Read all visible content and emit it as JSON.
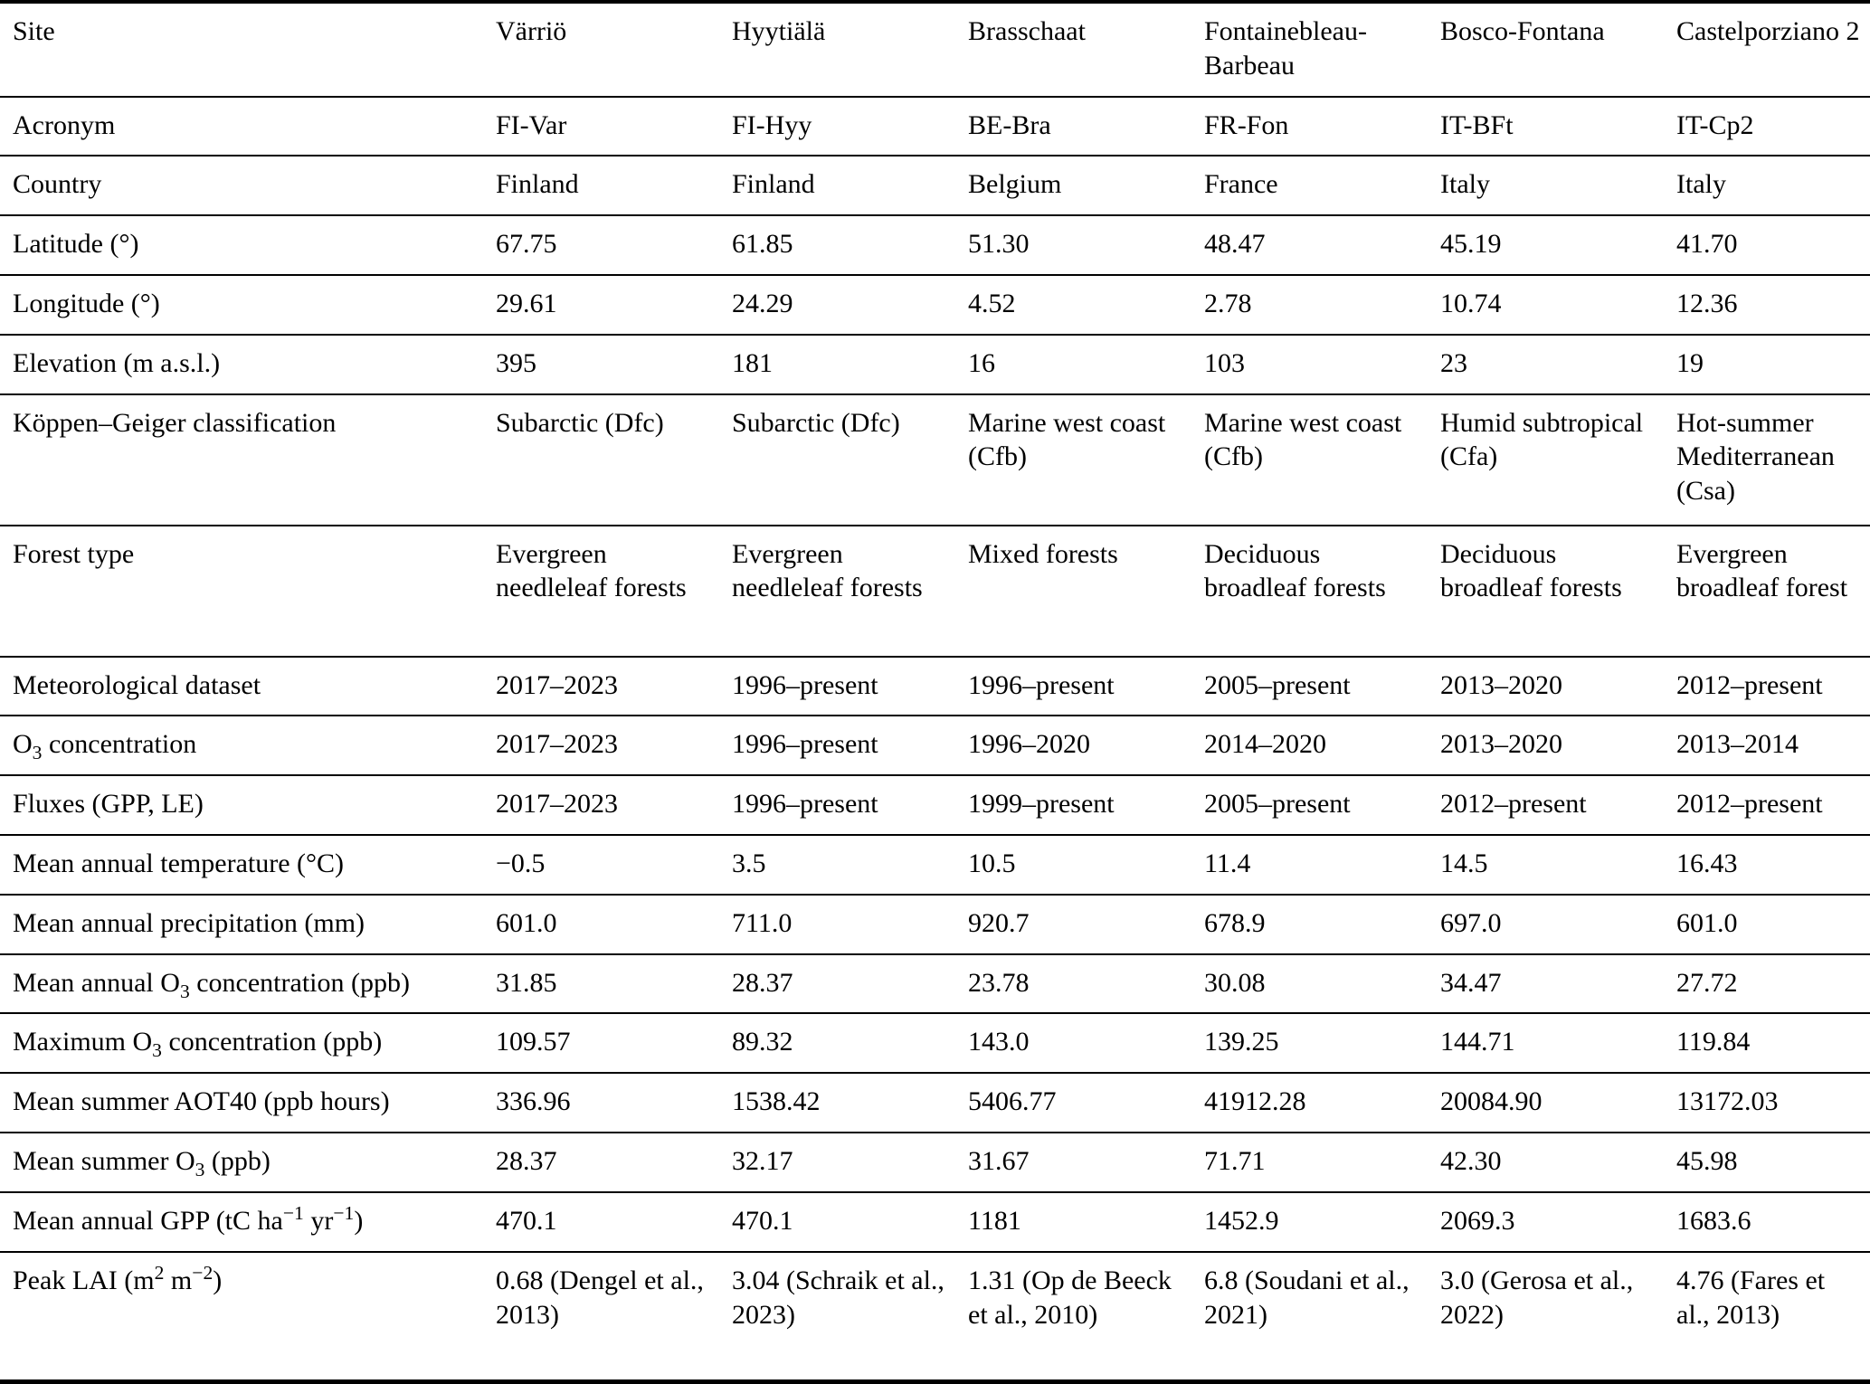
{
  "table": {
    "header": {
      "label": "Site",
      "values": [
        "Värriö",
        "Hyytiälä",
        "Brasschaat",
        "Fontainebleau-Barbeau",
        "Bosco-Fontana",
        "Castelporziano 2"
      ]
    },
    "rows": [
      {
        "label": "Acronym",
        "values": [
          "FI-Var",
          "FI-Hyy",
          "BE-Bra",
          "FR-Fon",
          "IT-BFt",
          "IT-Cp2"
        ]
      },
      {
        "label": "Country",
        "values": [
          "Finland",
          "Finland",
          "Belgium",
          "France",
          "Italy",
          "Italy"
        ]
      },
      {
        "label": "Latitude (°)",
        "values": [
          "67.75",
          "61.85",
          "51.30",
          "48.47",
          "45.19",
          "41.70"
        ]
      },
      {
        "label": "Longitude (°)",
        "values": [
          "29.61",
          "24.29",
          "4.52",
          "2.78",
          "10.74",
          "12.36"
        ]
      },
      {
        "label": "Elevation (m a.s.l.)",
        "values": [
          "395",
          "181",
          "16",
          "103",
          "23",
          "19"
        ]
      },
      {
        "label": "Köppen–Geiger classification",
        "values": [
          "Subarctic (Dfc)",
          "Subarctic (Dfc)",
          "Marine west coast (Cfb)",
          "Marine west coast (Cfb)",
          "Humid subtropical (Cfa)",
          "Hot-summer Mediterranean (Csa)"
        ]
      },
      {
        "label": "Forest type",
        "values": [
          "Evergreen needleleaf forests",
          "Evergreen needleleaf forests",
          "Mixed forests",
          "Deciduous broadleaf forests",
          "Deciduous broadleaf forests",
          "Evergreen broadleaf forest"
        ]
      },
      {
        "label": "Meteorological dataset",
        "values": [
          "2017–2023",
          "1996–present",
          "1996–present",
          "2005–present",
          "2013–2020",
          "2012–present"
        ]
      },
      {
        "label": "O~3~ concentration",
        "values": [
          "2017–2023",
          "1996–present",
          "1996–2020",
          "2014–2020",
          "2013–2020",
          "2013–2014"
        ]
      },
      {
        "label": "Fluxes (GPP, LE)",
        "values": [
          "2017–2023",
          "1996–present",
          "1999–present",
          "2005–present",
          "2012–present",
          "2012–present"
        ]
      },
      {
        "label": "Mean annual temperature (°C)",
        "values": [
          "−0.5",
          "3.5",
          "10.5",
          "11.4",
          "14.5",
          "16.43"
        ]
      },
      {
        "label": "Mean annual precipitation (mm)",
        "values": [
          "601.0",
          "711.0",
          "920.7",
          "678.9",
          "697.0",
          "601.0"
        ]
      },
      {
        "label": "Mean annual O~3~ concentration (ppb)",
        "values": [
          "31.85",
          "28.37",
          "23.78",
          "30.08",
          "34.47",
          "27.72"
        ]
      },
      {
        "label": "Maximum O~3~ concentration (ppb)",
        "values": [
          "109.57",
          "89.32",
          "143.0",
          "139.25",
          "144.71",
          "119.84"
        ]
      },
      {
        "label": "Mean summer AOT40 (ppb hours)",
        "values": [
          "336.96",
          "1538.42",
          "5406.77",
          "41912.28",
          "20084.90",
          "13172.03"
        ]
      },
      {
        "label": "Mean summer O~3~ (ppb)",
        "values": [
          "28.37",
          "32.17",
          "31.67",
          "71.71",
          "42.30",
          "45.98"
        ]
      },
      {
        "label": "Mean annual GPP (tC ha^−1^ yr^−1^)",
        "values": [
          "470.1",
          "470.1",
          "1181",
          "1452.9",
          "2069.3",
          "1683.6"
        ]
      },
      {
        "label": "Peak LAI (m^2^ m^−2^)",
        "values": [
          "0.68 (Dengel et al., 2013)",
          "3.04 (Schraik et al., 2023)",
          "1.31 (Op de Beeck et al., 2010)",
          "6.8 (Soudani et al., 2021)",
          "3.0 (Gerosa et al., 2022)",
          "4.76 (Fares et al., 2013)"
        ]
      }
    ]
  }
}
